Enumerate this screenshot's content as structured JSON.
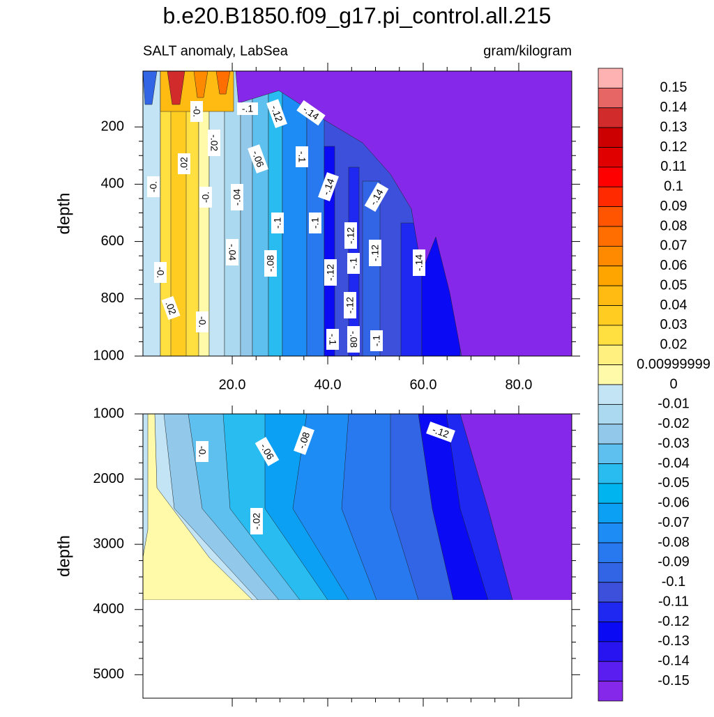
{
  "chart_data": [
    {
      "type": "contour",
      "title": "b.e20.B1850.f09_g17.pi_control.all.215",
      "subtitle_left": "SALT anomaly, LabSea",
      "subtitle_right": "gram/kilogram",
      "ylabel": "depth",
      "ylim": [
        5,
        1000
      ],
      "yticks": [
        200,
        400,
        600,
        800,
        1000
      ],
      "xlim": [
        1.3,
        91.1
      ],
      "xticks": [
        {
          "value": 20,
          "label": "20.0"
        },
        {
          "value": 40,
          "label": "40.0"
        },
        {
          "value": 60,
          "label": "60.0"
        },
        {
          "value": 80,
          "label": "80.0"
        }
      ],
      "contour_labels": [
        "-.1",
        "-.12",
        "-.14",
        "-0.",
        "-.02",
        ".02",
        "-.06",
        "-.1",
        "-0.",
        "-0.",
        "-.04",
        "-.14",
        "-.14",
        "-.1",
        "-.1",
        "-.12",
        "-.04",
        "-.12",
        "-.08",
        "-.12",
        "-.1",
        "-.14",
        "-0.",
        ".02",
        "-.12",
        "-0.",
        "-.1",
        "-.08",
        "-.1"
      ],
      "colorbar": {
        "levels": [
          0.15,
          0.14,
          0.13,
          0.12,
          0.11,
          0.1,
          0.09,
          0.08,
          0.07,
          0.06,
          0.05,
          0.04,
          0.03,
          0.02,
          0.00999999,
          0,
          -0.01,
          -0.02,
          -0.03,
          -0.04,
          -0.05,
          -0.06,
          -0.07,
          -0.08,
          -0.09,
          -0.1,
          -0.11,
          -0.12,
          -0.13,
          -0.14,
          -0.15
        ],
        "colors": [
          "#ffb2b2",
          "#e66666",
          "#d22b2b",
          "#cc0000",
          "#e00000",
          "#ff0000",
          "#ff2a00",
          "#ff5500",
          "#ff6e00",
          "#ff8a00",
          "#ffa500",
          "#ffbb11",
          "#ffcc22",
          "#ffe040",
          "#fff080",
          "#fffaaa",
          "#c2e4f5",
          "#abdaf0",
          "#92c8ea",
          "#5ec0ee",
          "#28bcf0",
          "#00b4f0",
          "#0ca0f5",
          "#1e8cf5",
          "#2878f0",
          "#3264e6",
          "#3c50dc",
          "#1e28f0",
          "#0a0af5",
          "#2814f0",
          "#5a1ef0",
          "#8528ea"
        ]
      }
    },
    {
      "type": "contour",
      "ylabel": "depth",
      "ylim": [
        1000,
        5360
      ],
      "yticks": [
        1000,
        2000,
        3000,
        4000,
        5000
      ],
      "xlim": [
        1.3,
        91.1
      ],
      "xticks": [
        20,
        40,
        60,
        80
      ],
      "contour_labels": [
        "-0.",
        "-.06",
        "-.08",
        "-.12",
        "-.02"
      ]
    }
  ]
}
